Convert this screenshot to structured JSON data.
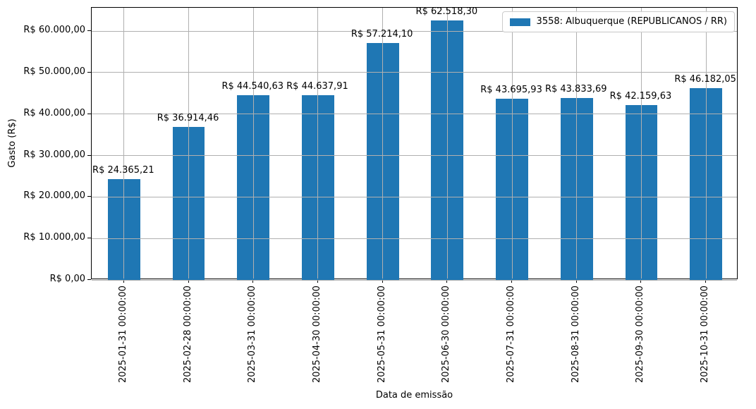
{
  "chart_data": {
    "type": "bar",
    "title": "",
    "xlabel": "Data de emissão",
    "ylabel": "Gasto (R$)",
    "categories": [
      "2025-01-31 00:00:00",
      "2025-02-28 00:00:00",
      "2025-03-31 00:00:00",
      "2025-04-30 00:00:00",
      "2025-05-31 00:00:00",
      "2025-06-30 00:00:00",
      "2025-07-31 00:00:00",
      "2025-08-31 00:00:00",
      "2025-09-30 00:00:00",
      "2025-10-31 00:00:00"
    ],
    "values": [
      24365.21,
      36914.46,
      44540.63,
      44637.91,
      57214.1,
      62518.3,
      43695.93,
      43833.69,
      42159.63,
      46182.05
    ],
    "value_labels": [
      "R$ 24.365,21",
      "R$ 36.914,46",
      "R$ 44.540,63",
      "R$ 44.637,91",
      "R$ 57.214,10",
      "R$ 62.518,30",
      "R$ 43.695,93",
      "R$ 43.833,69",
      "R$ 42.159,63",
      "R$ 46.182,05"
    ],
    "ytick_values": [
      0,
      10000,
      20000,
      30000,
      40000,
      50000,
      60000
    ],
    "ytick_labels": [
      "R$ 0,00",
      "R$ 10.000,00",
      "R$ 20.000,00",
      "R$ 30.000,00",
      "R$ 40.000,00",
      "R$ 50.000,00",
      "R$ 60.000,00"
    ],
    "ylim": [
      0,
      65644
    ],
    "grid": true,
    "bar_width_fraction": 0.5,
    "legend": {
      "position": "upper-right",
      "entries": [
        {
          "label": "3558: Albuquerque (REPUBLICANOS / RR)",
          "color": "#1f77b4"
        }
      ]
    },
    "colors": {
      "bar": "#1f77b4",
      "grid": "#b0b0b0",
      "spine": "#000000",
      "text": "#000000",
      "legend_border": "#cccccc"
    }
  }
}
